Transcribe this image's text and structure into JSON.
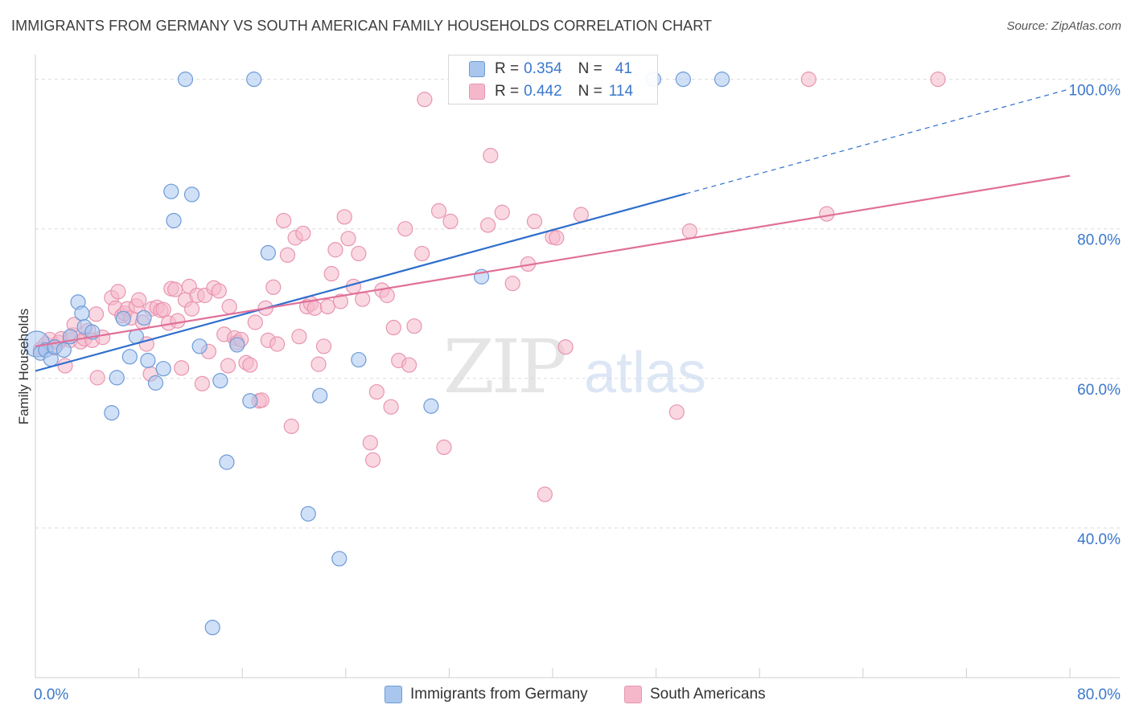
{
  "header": {
    "title": "IMMIGRANTS FROM GERMANY VS SOUTH AMERICAN FAMILY HOUSEHOLDS CORRELATION CHART",
    "source": "Source: ZipAtlas.com"
  },
  "watermark": {
    "zip": "ZIP",
    "atlas": "atlas"
  },
  "legend": {
    "r_label": "R =",
    "n_label": "N =",
    "rows": [
      {
        "name": "Immigrants from Germany",
        "r": "0.354",
        "n": "41"
      },
      {
        "name": "South Americans",
        "r": "0.442",
        "n": "114"
      }
    ]
  },
  "colors": {
    "blue_fill": "#a9c6ee",
    "blue_stroke": "#6d9bd8",
    "blue_line": "#2f6fcc",
    "pink_fill": "#f5b8cb",
    "pink_stroke": "#e895b0",
    "pink_line": "#e07099",
    "axis_text": "#3b78cc",
    "grid": "#dcdcdc"
  },
  "chart_data": {
    "type": "scatter",
    "title": "IMMIGRANTS FROM GERMANY VS SOUTH AMERICAN FAMILY HOUSEHOLDS CORRELATION CHART",
    "xlabel": "",
    "ylabel": "Family Households",
    "xlim": [
      0,
      80
    ],
    "ylim": [
      20,
      102
    ],
    "x_tick_labels": [
      {
        "value": 0,
        "label": "0.0%"
      },
      {
        "value": 80,
        "label": "80.0%"
      }
    ],
    "y_tick_labels": [
      {
        "value": 40,
        "label": "40.0%"
      },
      {
        "value": 60,
        "label": "60.0%"
      },
      {
        "value": 80,
        "label": "80.0%"
      },
      {
        "value": 100,
        "label": "100.0%"
      }
    ],
    "grid": true,
    "legend_position": "top-center",
    "series": [
      {
        "name": "Immigrants from Germany",
        "color": "blue",
        "r": 0.354,
        "n": 41,
        "trend": {
          "x0": 0,
          "y0": 61.0,
          "x1": 50.3,
          "y1": 84.7,
          "dash_x1": 80,
          "dash_y1": 98.7
        },
        "points": [
          [
            0.1,
            64.6,
            16
          ],
          [
            0.4,
            63.4,
            9
          ],
          [
            0.8,
            63.8,
            9
          ],
          [
            1.2,
            62.6,
            9
          ],
          [
            1.5,
            64.2,
            9
          ],
          [
            2.2,
            63.8,
            9
          ],
          [
            2.7,
            65.6,
            9
          ],
          [
            3.3,
            70.2,
            9
          ],
          [
            3.6,
            68.7,
            9
          ],
          [
            3.8,
            66.9,
            9
          ],
          [
            4.4,
            66.2,
            9
          ],
          [
            5.9,
            55.4,
            9
          ],
          [
            6.3,
            60.1,
            9
          ],
          [
            6.8,
            68.0,
            9
          ],
          [
            7.3,
            62.9,
            9
          ],
          [
            7.8,
            65.6,
            9
          ],
          [
            8.4,
            68.1,
            9
          ],
          [
            8.7,
            62.4,
            9
          ],
          [
            9.3,
            59.4,
            9
          ],
          [
            9.9,
            61.3,
            9
          ],
          [
            10.5,
            85.0,
            9
          ],
          [
            10.7,
            81.1,
            9
          ],
          [
            11.6,
            100.0,
            9
          ],
          [
            12.1,
            84.6,
            9
          ],
          [
            12.7,
            64.3,
            9
          ],
          [
            13.7,
            26.7,
            9
          ],
          [
            14.3,
            59.7,
            9
          ],
          [
            14.8,
            48.8,
            9
          ],
          [
            15.6,
            64.5,
            9
          ],
          [
            16.6,
            57.0,
            9
          ],
          [
            16.9,
            100.0,
            9
          ],
          [
            18.0,
            76.8,
            9
          ],
          [
            21.1,
            41.9,
            9
          ],
          [
            22.0,
            57.7,
            9
          ],
          [
            23.5,
            35.9,
            9
          ],
          [
            25.0,
            62.5,
            9
          ],
          [
            30.6,
            56.3,
            9
          ],
          [
            34.5,
            73.6,
            9
          ],
          [
            47.8,
            100.0,
            9
          ],
          [
            50.1,
            100.0,
            9
          ],
          [
            53.1,
            100.0,
            9
          ]
        ]
      },
      {
        "name": "South Americans",
        "color": "pink",
        "r": 0.442,
        "n": 114,
        "trend": {
          "x0": 0,
          "y0": 64.3,
          "x1": 80,
          "y1": 87.1
        },
        "points": [
          [
            0.4,
            63.9,
            9
          ],
          [
            0.8,
            64.6,
            9
          ],
          [
            1.1,
            65.2,
            9
          ],
          [
            1.4,
            64.1,
            9
          ],
          [
            1.8,
            64.8,
            9
          ],
          [
            2.0,
            65.3,
            9
          ],
          [
            2.3,
            61.7,
            9
          ],
          [
            2.7,
            65.1,
            9
          ],
          [
            2.9,
            65.8,
            9
          ],
          [
            3.0,
            67.2,
            9
          ],
          [
            3.5,
            64.9,
            9
          ],
          [
            3.8,
            65.3,
            9
          ],
          [
            4.1,
            66.4,
            9
          ],
          [
            4.4,
            65.1,
            9
          ],
          [
            4.7,
            68.6,
            9
          ],
          [
            4.8,
            60.1,
            9
          ],
          [
            5.2,
            65.5,
            9
          ],
          [
            5.9,
            70.8,
            9
          ],
          [
            6.2,
            69.4,
            9
          ],
          [
            6.4,
            71.6,
            9
          ],
          [
            6.7,
            68.4,
            9
          ],
          [
            6.9,
            68.7,
            9
          ],
          [
            7.1,
            69.3,
            9
          ],
          [
            7.4,
            68.1,
            9
          ],
          [
            7.8,
            69.7,
            9
          ],
          [
            8.0,
            70.5,
            9
          ],
          [
            8.3,
            67.5,
            9
          ],
          [
            8.6,
            64.6,
            9
          ],
          [
            8.9,
            60.6,
            9
          ],
          [
            9.0,
            69.3,
            9
          ],
          [
            9.4,
            69.5,
            9
          ],
          [
            9.7,
            69.1,
            9
          ],
          [
            9.9,
            69.2,
            9
          ],
          [
            10.3,
            67.4,
            9
          ],
          [
            10.5,
            72.0,
            9
          ],
          [
            10.8,
            71.9,
            9
          ],
          [
            11.0,
            67.7,
            9
          ],
          [
            11.3,
            61.4,
            9
          ],
          [
            11.6,
            70.5,
            9
          ],
          [
            11.9,
            72.3,
            9
          ],
          [
            12.1,
            69.3,
            9
          ],
          [
            12.5,
            71.1,
            9
          ],
          [
            12.9,
            59.3,
            9
          ],
          [
            13.1,
            71.1,
            9
          ],
          [
            13.4,
            63.6,
            9
          ],
          [
            13.8,
            72.1,
            9
          ],
          [
            14.2,
            71.7,
            9
          ],
          [
            14.6,
            65.9,
            9
          ],
          [
            14.9,
            61.7,
            9
          ],
          [
            15.0,
            69.6,
            9
          ],
          [
            15.4,
            65.4,
            9
          ],
          [
            15.6,
            64.8,
            9
          ],
          [
            15.9,
            65.2,
            9
          ],
          [
            16.3,
            62.1,
            9
          ],
          [
            16.6,
            61.8,
            9
          ],
          [
            17.0,
            67.5,
            9
          ],
          [
            17.3,
            57.0,
            9
          ],
          [
            17.5,
            57.1,
            9
          ],
          [
            17.8,
            69.4,
            9
          ],
          [
            18.0,
            65.1,
            9
          ],
          [
            18.4,
            72.2,
            9
          ],
          [
            18.7,
            64.6,
            9
          ],
          [
            19.2,
            81.1,
            9
          ],
          [
            19.5,
            76.5,
            9
          ],
          [
            19.8,
            53.6,
            9
          ],
          [
            20.1,
            78.8,
            9
          ],
          [
            20.4,
            65.6,
            9
          ],
          [
            20.7,
            79.4,
            9
          ],
          [
            21.0,
            69.6,
            9
          ],
          [
            21.3,
            70.0,
            9
          ],
          [
            21.6,
            69.4,
            9
          ],
          [
            21.9,
            61.9,
            9
          ],
          [
            22.3,
            64.3,
            9
          ],
          [
            22.6,
            69.6,
            9
          ],
          [
            22.9,
            74.0,
            9
          ],
          [
            23.2,
            77.2,
            9
          ],
          [
            23.6,
            70.3,
            9
          ],
          [
            23.9,
            81.6,
            9
          ],
          [
            24.2,
            78.7,
            9
          ],
          [
            24.6,
            72.3,
            9
          ],
          [
            25.0,
            76.7,
            9
          ],
          [
            25.3,
            70.6,
            9
          ],
          [
            25.9,
            51.4,
            9
          ],
          [
            26.1,
            49.1,
            9
          ],
          [
            26.4,
            58.2,
            9
          ],
          [
            26.8,
            71.8,
            9
          ],
          [
            27.2,
            71.1,
            9
          ],
          [
            27.5,
            56.2,
            9
          ],
          [
            27.7,
            66.8,
            9
          ],
          [
            28.1,
            62.4,
            9
          ],
          [
            28.6,
            80.0,
            9
          ],
          [
            28.9,
            61.8,
            9
          ],
          [
            29.3,
            67.0,
            9
          ],
          [
            29.9,
            76.7,
            9
          ],
          [
            30.1,
            97.3,
            9
          ],
          [
            31.2,
            82.4,
            9
          ],
          [
            31.6,
            50.8,
            9
          ],
          [
            32.1,
            81.0,
            9
          ],
          [
            35.0,
            80.5,
            9
          ],
          [
            35.2,
            89.8,
            9
          ],
          [
            36.1,
            82.2,
            9
          ],
          [
            36.9,
            72.7,
            9
          ],
          [
            38.1,
            75.3,
            9
          ],
          [
            38.6,
            81.0,
            9
          ],
          [
            39.4,
            44.5,
            9
          ],
          [
            40.0,
            78.9,
            9
          ],
          [
            40.3,
            78.8,
            9
          ],
          [
            41.0,
            64.2,
            9
          ],
          [
            42.2,
            81.9,
            9
          ],
          [
            49.6,
            55.5,
            9
          ],
          [
            50.6,
            79.7,
            9
          ],
          [
            59.8,
            100.0,
            9
          ],
          [
            61.2,
            82.0,
            9
          ],
          [
            69.8,
            100.0,
            9
          ]
        ]
      }
    ]
  }
}
